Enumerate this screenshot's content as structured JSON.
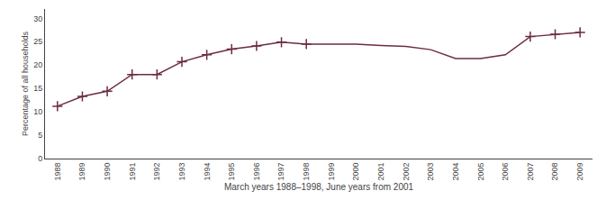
{
  "chart_data": {
    "type": "line",
    "categories": [
      "1988",
      "1989",
      "1990",
      "1991",
      "1992",
      "1993",
      "1994",
      "1995",
      "1996",
      "1997",
      "1998",
      "1999",
      "2000",
      "2001",
      "2002",
      "2003",
      "2004",
      "2005",
      "2006",
      "2007",
      "2008",
      "2009"
    ],
    "series": [
      {
        "type": "line",
        "color": "#6d2b45",
        "line_style": "solid",
        "values": [
          11.2,
          13.3,
          14.4,
          18.0,
          18.0,
          20.7,
          22.2,
          23.4,
          24.1,
          24.9,
          24.5,
          24.5,
          24.5,
          24.2,
          24.0,
          23.3,
          21.4,
          21.4,
          22.2,
          26.1,
          26.6,
          27.0
        ]
      },
      {
        "type": "scatter",
        "color": "#6d2b45",
        "marker": "plus",
        "values": [
          11.2,
          13.3,
          14.4,
          18.0,
          18.0,
          20.7,
          22.2,
          23.4,
          24.1,
          24.9,
          24.5,
          null,
          null,
          null,
          null,
          null,
          null,
          null,
          null,
          26.1,
          26.6,
          27.0
        ]
      }
    ],
    "xlabel": "March years 1988–1998, June years from 2001",
    "ylabel": "Percentage of all households",
    "ylim": [
      0,
      32
    ],
    "yticks": [
      0,
      5,
      10,
      15,
      20,
      25,
      30
    ],
    "grid": false
  }
}
